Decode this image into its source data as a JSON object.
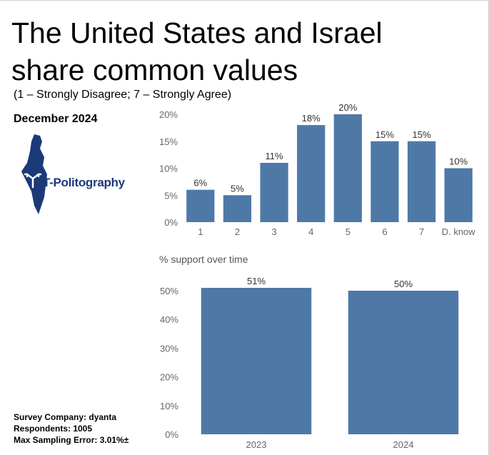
{
  "header": {
    "title_line1": "The United States and Israel",
    "title_line2": "share common values",
    "subtitle": "(1 – Strongly Disagree; 7 – Strongly Agree)",
    "date": "December 2024"
  },
  "logo": {
    "text": "T-Politography",
    "color": "#1b3a78"
  },
  "footer": {
    "company": "Survey Company: dyanta",
    "respondents": "Respondents: 1005",
    "error": "Max Sampling Error: 3.01%±"
  },
  "colors": {
    "bar": "#4e79a7",
    "axis_text": "#666666",
    "grid": "#e6e6e6"
  },
  "chart_data": [
    {
      "type": "bar",
      "categories": [
        "1",
        "2",
        "3",
        "4",
        "5",
        "6",
        "7",
        "D. know"
      ],
      "values": [
        6,
        5,
        11,
        18,
        20,
        15,
        15,
        10
      ],
      "data_labels": [
        "6%",
        "5%",
        "11%",
        "18%",
        "20%",
        "15%",
        "15%",
        "10%"
      ],
      "ylim": [
        0,
        20
      ],
      "yticks": [
        0,
        5,
        10,
        15,
        20
      ],
      "ytick_labels": [
        "0%",
        "5%",
        "10%",
        "15%",
        "20%"
      ],
      "title": "",
      "xlabel": "",
      "ylabel": ""
    },
    {
      "type": "bar",
      "title": "% support over time",
      "categories": [
        "2023",
        "2024"
      ],
      "values": [
        51,
        50
      ],
      "data_labels": [
        "51%",
        "50%"
      ],
      "ylim": [
        0,
        50
      ],
      "yticks": [
        0,
        10,
        20,
        30,
        40,
        50
      ],
      "ytick_labels": [
        "0%",
        "10%",
        "20%",
        "30%",
        "40%",
        "50%"
      ],
      "xlabel": "",
      "ylabel": ""
    }
  ]
}
